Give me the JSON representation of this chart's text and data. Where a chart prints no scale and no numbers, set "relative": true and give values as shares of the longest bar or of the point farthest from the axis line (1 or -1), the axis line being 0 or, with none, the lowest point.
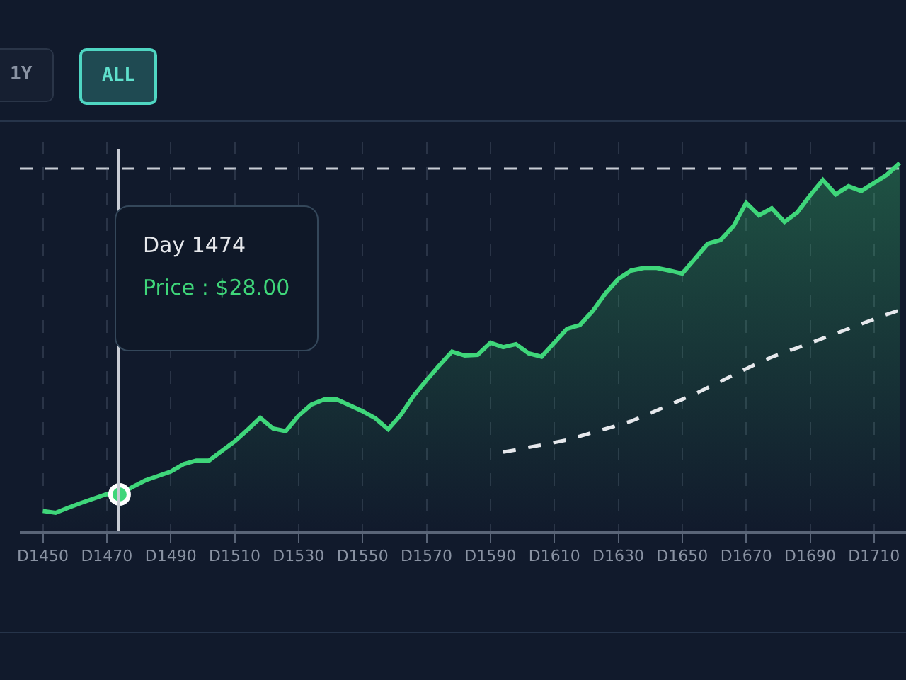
{
  "chart_data": {
    "type": "area",
    "relative": true,
    "grid": "x",
    "categories": [
      "D1450",
      null,
      null,
      null,
      null,
      "D1470",
      null,
      null,
      null,
      null,
      "D1490",
      null,
      null,
      null,
      null,
      "D1510",
      null,
      null,
      null,
      null,
      "D1530",
      null,
      null,
      null,
      null,
      "D1550",
      null,
      null,
      null,
      null,
      "D1570",
      null,
      null,
      null,
      null,
      "D1590",
      null,
      null,
      null,
      null,
      "D1610",
      null,
      null,
      null,
      null,
      "D1630",
      null,
      null,
      null,
      null,
      "D1650",
      null,
      null,
      null,
      null,
      "D1670",
      null,
      null,
      null,
      null,
      "D1690",
      null,
      null,
      null,
      null,
      "D1710",
      null,
      null
    ],
    "series": [
      {
        "color": "#3fd67a",
        "values": [
          0.055,
          0.05,
          0.064,
          0.077,
          0.089,
          0.101,
          0.1,
          0.12,
          0.138,
          0.15,
          0.162,
          0.182,
          0.192,
          0.192,
          0.218,
          0.244,
          0.275,
          0.308,
          0.279,
          0.272,
          0.314,
          0.344,
          0.358,
          0.358,
          0.342,
          0.326,
          0.307,
          0.277,
          0.316,
          0.368,
          0.41,
          0.45,
          0.488,
          0.477,
          0.479,
          0.512,
          0.5,
          0.508,
          0.483,
          0.474,
          0.512,
          0.55,
          0.56,
          0.598,
          0.646,
          0.685,
          0.708,
          0.715,
          0.715,
          0.708,
          0.7,
          0.74,
          0.781,
          0.791,
          0.828,
          0.892,
          0.858,
          0.877,
          0.84,
          0.866,
          0.912,
          0.954,
          0.915,
          0.937,
          0.924,
          0.946,
          0.968,
          1.0
        ]
      },
      {
        "type": "line",
        "color": "#e6e8ec",
        "line_style": "dashed",
        "values": [
          null,
          null,
          null,
          null,
          null,
          null,
          null,
          null,
          null,
          null,
          null,
          null,
          null,
          null,
          null,
          null,
          null,
          null,
          null,
          null,
          null,
          null,
          null,
          null,
          null,
          null,
          null,
          null,
          null,
          null,
          null,
          null,
          null,
          null,
          null,
          null,
          0.215,
          0.221,
          0.228,
          0.234,
          0.241,
          0.248,
          0.258,
          0.268,
          0.278,
          0.288,
          0.299,
          0.313,
          0.328,
          0.343,
          0.358,
          0.373,
          0.39,
          0.407,
          0.424,
          0.441,
          0.458,
          0.473,
          0.486,
          0.498,
          0.511,
          0.524,
          0.537,
          0.55,
          0.563,
          0.576,
          0.589,
          0.6
        ]
      },
      {
        "type": "scatter",
        "color": "#3fd67a",
        "marker": "circle",
        "values": [
          null,
          null,
          null,
          null,
          null,
          null,
          0.1,
          null,
          null,
          null,
          null,
          null,
          null,
          null,
          null,
          null,
          null,
          null,
          null,
          null,
          null,
          null,
          null,
          null,
          null,
          null,
          null,
          null,
          null,
          null,
          null,
          null,
          null,
          null,
          null,
          null,
          null,
          null,
          null,
          null,
          null,
          null,
          null,
          null,
          null,
          null,
          null,
          null,
          null,
          null,
          null,
          null,
          null,
          null,
          null,
          null,
          null,
          null,
          null,
          null,
          null,
          null,
          null,
          null,
          null,
          null,
          null,
          null
        ]
      }
    ],
    "ref_lines": [
      {
        "axis": "y",
        "value": 0.985,
        "line_style": "dashed",
        "color": "#c9cdd5"
      }
    ],
    "annotations": [
      "1Y",
      "ALL",
      "Day 1474",
      "Price : $28.00"
    ]
  }
}
